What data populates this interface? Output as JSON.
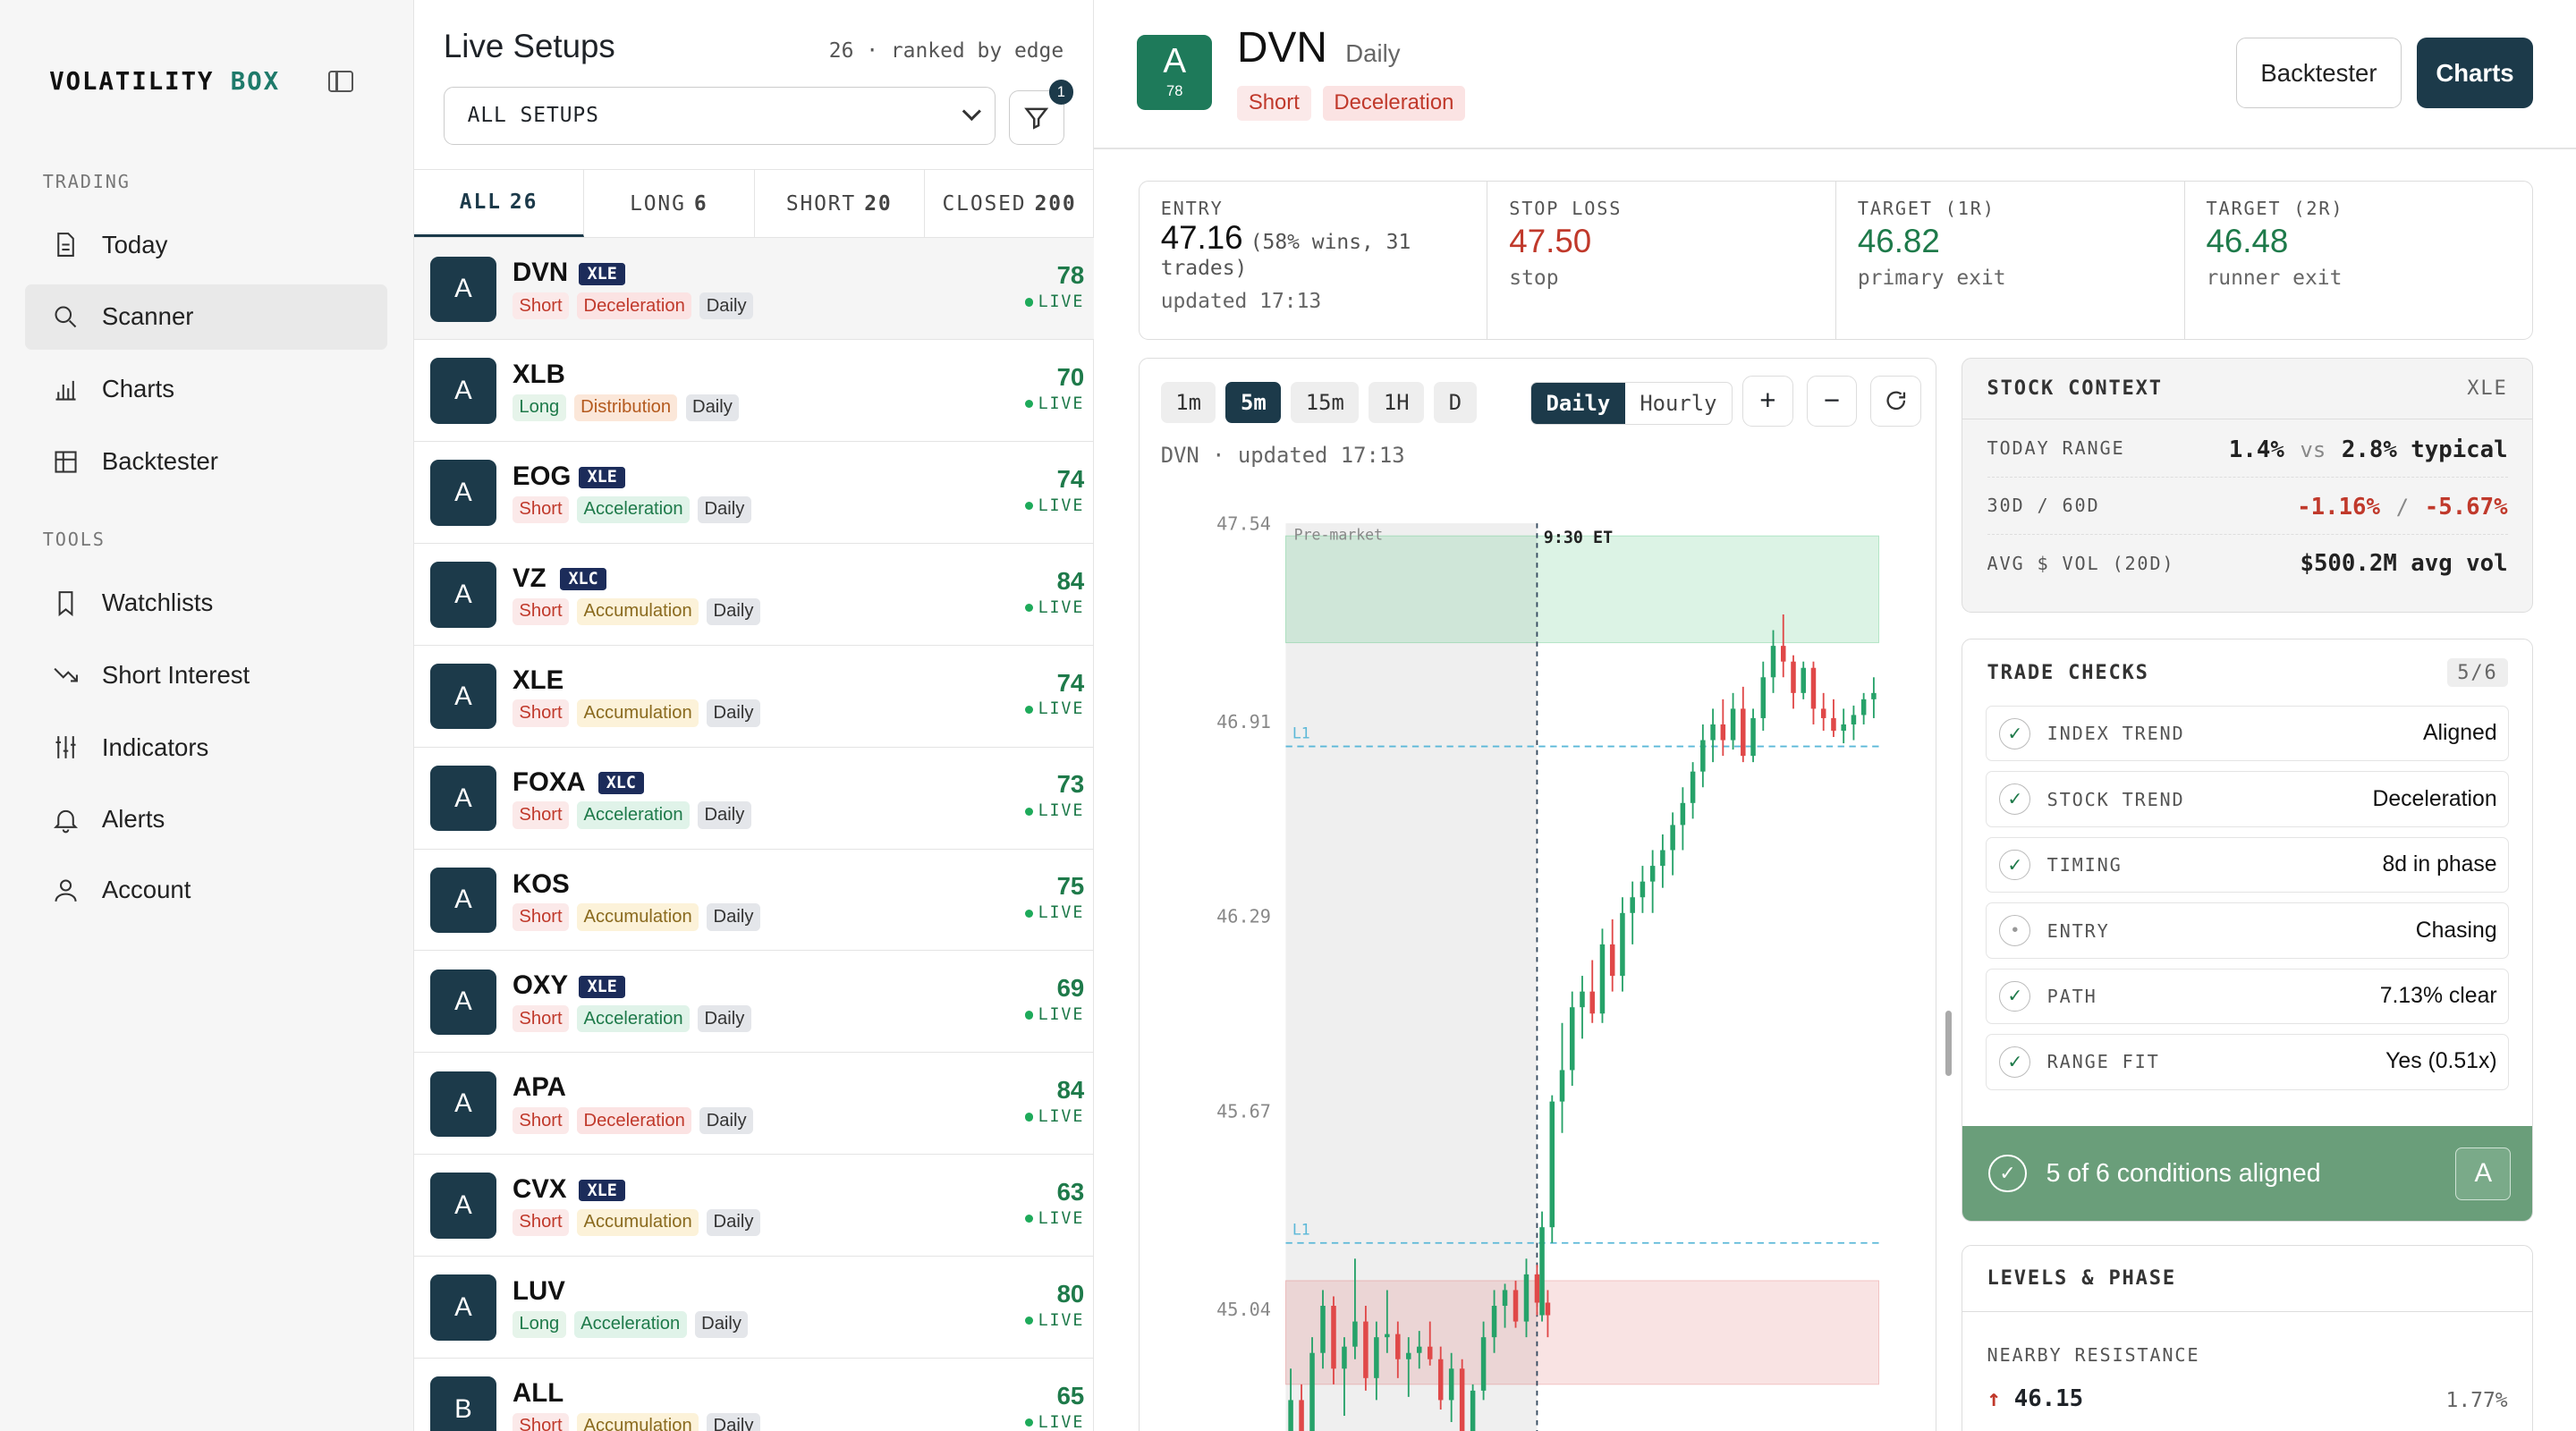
{
  "brand": {
    "part1": "VOLATILITY",
    "part2": "BOX"
  },
  "nav": {
    "section_trading": "TRADING",
    "section_tools": "TOOLS",
    "items": [
      "Today",
      "Scanner",
      "Charts",
      "Backtester",
      "Watchlists",
      "Short Interest",
      "Indicators",
      "Alerts",
      "Account"
    ]
  },
  "list": {
    "title": "Live Setups",
    "rank_text": "26 · ranked by edge",
    "select_value": "ALL SETUPS",
    "filter_badge": "1",
    "tabs": [
      {
        "label": "ALL",
        "count": "26"
      },
      {
        "label": "LONG",
        "count": "6"
      },
      {
        "label": "SHORT",
        "count": "20"
      },
      {
        "label": "CLOSED",
        "count": "200"
      }
    ],
    "live_label": "LIVE",
    "rows": [
      {
        "grade": "A",
        "ticker": "DVN",
        "sector": "XLE",
        "dir": "Short",
        "phase": "Deceleration",
        "tf": "Daily",
        "score": "78"
      },
      {
        "grade": "A",
        "ticker": "XLB",
        "sector": "",
        "dir": "Long",
        "phase": "Distribution",
        "tf": "Daily",
        "score": "70"
      },
      {
        "grade": "A",
        "ticker": "EOG",
        "sector": "XLE",
        "dir": "Short",
        "phase": "Acceleration",
        "tf": "Daily",
        "score": "74"
      },
      {
        "grade": "A",
        "ticker": "VZ",
        "sector": "XLC",
        "dir": "Short",
        "phase": "Accumulation",
        "tf": "Daily",
        "score": "84"
      },
      {
        "grade": "A",
        "ticker": "XLE",
        "sector": "",
        "dir": "Short",
        "phase": "Accumulation",
        "tf": "Daily",
        "score": "74"
      },
      {
        "grade": "A",
        "ticker": "FOXA",
        "sector": "XLC",
        "dir": "Short",
        "phase": "Acceleration",
        "tf": "Daily",
        "score": "73"
      },
      {
        "grade": "A",
        "ticker": "KOS",
        "sector": "",
        "dir": "Short",
        "phase": "Accumulation",
        "tf": "Daily",
        "score": "75"
      },
      {
        "grade": "A",
        "ticker": "OXY",
        "sector": "XLE",
        "dir": "Short",
        "phase": "Acceleration",
        "tf": "Daily",
        "score": "69"
      },
      {
        "grade": "A",
        "ticker": "APA",
        "sector": "",
        "dir": "Short",
        "phase": "Deceleration",
        "tf": "Daily",
        "score": "84"
      },
      {
        "grade": "A",
        "ticker": "CVX",
        "sector": "XLE",
        "dir": "Short",
        "phase": "Accumulation",
        "tf": "Daily",
        "score": "63"
      },
      {
        "grade": "A",
        "ticker": "LUV",
        "sector": "",
        "dir": "Long",
        "phase": "Acceleration",
        "tf": "Daily",
        "score": "80"
      },
      {
        "grade": "B",
        "ticker": "ALL",
        "sector": "",
        "dir": "Short",
        "phase": "Accumulation",
        "tf": "Daily",
        "score": "65"
      }
    ]
  },
  "header": {
    "grade": "A",
    "grade_score": "78",
    "ticker": "DVN",
    "timeframe": "Daily",
    "dir": "Short",
    "phase": "Deceleration",
    "backtester_btn": "Backtester",
    "charts_btn": "Charts"
  },
  "stats": {
    "entry": {
      "label": "ENTRY",
      "value": "47.16",
      "note": "(58% wins, 31",
      "note2": "trades)",
      "sub": "updated 17:13"
    },
    "stop": {
      "label": "STOP LOSS",
      "value": "47.50",
      "sub": "stop"
    },
    "t1": {
      "label": "TARGET (1R)",
      "value": "46.82",
      "sub": "primary exit"
    },
    "t2": {
      "label": "TARGET (2R)",
      "value": "46.48",
      "sub": "runner exit"
    }
  },
  "chart": {
    "tf_buttons": [
      "1m",
      "5m",
      "15m",
      "1H",
      "D"
    ],
    "tf_active": "5m",
    "seg": [
      "Daily",
      "Hourly"
    ],
    "seg_active": "Daily",
    "zoom_in": "+",
    "zoom_out": "−",
    "updated": "DVN · updated 17:13",
    "premarket_label": "Pre-market",
    "open_label": "9:30 ET",
    "l1_label": "L1"
  },
  "chart_data": {
    "type": "candlestick",
    "yticks": [
      47.54,
      46.91,
      46.29,
      45.67,
      45.04
    ],
    "ylim": [
      44.55,
      47.54
    ],
    "levels": [
      46.83,
      45.25
    ],
    "bands": [
      {
        "from": 47.5,
        "to": 47.16,
        "color": "green"
      },
      {
        "from": 45.13,
        "to": 44.8,
        "color": "red"
      }
    ],
    "candles": [
      [
        44.55,
        44.85,
        44.55,
        44.75
      ],
      [
        44.75,
        44.8,
        44.52,
        44.6
      ],
      [
        44.6,
        44.95,
        44.55,
        44.9
      ],
      [
        44.9,
        45.1,
        44.85,
        45.05
      ],
      [
        45.05,
        45.08,
        44.8,
        44.85
      ],
      [
        44.85,
        44.95,
        44.7,
        44.92
      ],
      [
        44.92,
        45.2,
        44.88,
        45.0
      ],
      [
        45.0,
        45.05,
        44.78,
        44.82
      ],
      [
        44.82,
        45.0,
        44.75,
        44.95
      ],
      [
        44.95,
        45.1,
        44.9,
        44.96
      ],
      [
        44.96,
        45.0,
        44.82,
        44.88
      ],
      [
        44.88,
        44.95,
        44.76,
        44.9
      ],
      [
        44.9,
        44.97,
        44.85,
        44.92
      ],
      [
        44.92,
        45.0,
        44.86,
        44.88
      ],
      [
        44.88,
        44.92,
        44.72,
        44.75
      ],
      [
        44.75,
        44.9,
        44.68,
        44.85
      ],
      [
        44.85,
        44.88,
        44.62,
        44.65
      ],
      [
        44.65,
        44.8,
        44.55,
        44.78
      ],
      [
        44.78,
        45.0,
        44.75,
        44.95
      ],
      [
        44.95,
        45.1,
        44.9,
        45.05
      ],
      [
        45.05,
        45.12,
        44.98,
        45.1
      ],
      [
        45.1,
        45.13,
        44.98,
        45.0
      ],
      [
        45.0,
        45.2,
        44.95,
        45.15
      ],
      [
        45.15,
        45.18,
        45.02,
        45.06
      ],
      [
        45.06,
        45.1,
        44.95,
        45.02
      ],
      [
        45.02,
        45.35,
        45.0,
        45.3
      ],
      [
        45.3,
        45.72,
        45.25,
        45.7
      ],
      [
        45.7,
        45.95,
        45.6,
        45.8
      ],
      [
        45.8,
        46.05,
        45.75,
        46.0
      ],
      [
        46.0,
        46.1,
        45.9,
        46.05
      ],
      [
        46.05,
        46.15,
        45.95,
        45.98
      ],
      [
        45.98,
        46.25,
        45.95,
        46.2
      ],
      [
        46.2,
        46.28,
        46.05,
        46.1
      ],
      [
        46.1,
        46.35,
        46.05,
        46.3
      ],
      [
        46.3,
        46.4,
        46.2,
        46.35
      ],
      [
        46.35,
        46.45,
        46.3,
        46.4
      ],
      [
        46.4,
        46.5,
        46.3,
        46.45
      ],
      [
        46.45,
        46.55,
        46.38,
        46.5
      ],
      [
        46.5,
        46.62,
        46.42,
        46.58
      ],
      [
        46.58,
        46.7,
        46.5,
        46.65
      ],
      [
        46.65,
        46.78,
        46.6,
        46.75
      ],
      [
        46.75,
        46.9,
        46.7,
        46.85
      ],
      [
        46.85,
        46.95,
        46.78,
        46.9
      ],
      [
        46.9,
        46.98,
        46.8,
        46.85
      ],
      [
        46.85,
        47.0,
        46.82,
        46.95
      ],
      [
        46.95,
        47.02,
        46.78,
        46.8
      ],
      [
        46.8,
        46.95,
        46.78,
        46.92
      ],
      [
        46.92,
        47.1,
        46.88,
        47.05
      ],
      [
        47.05,
        47.2,
        47.0,
        47.15
      ],
      [
        47.15,
        47.25,
        47.05,
        47.1
      ],
      [
        47.1,
        47.12,
        46.95,
        47.0
      ],
      [
        47.0,
        47.1,
        46.98,
        47.08
      ],
      [
        47.08,
        47.1,
        46.9,
        46.95
      ],
      [
        46.95,
        47.0,
        46.88,
        46.92
      ],
      [
        46.92,
        46.98,
        46.86,
        46.88
      ],
      [
        46.88,
        46.95,
        46.84,
        46.9
      ],
      [
        46.9,
        46.96,
        46.85,
        46.93
      ],
      [
        46.93,
        47.0,
        46.9,
        46.98
      ],
      [
        46.98,
        47.05,
        46.92,
        47.0
      ]
    ]
  },
  "context": {
    "title": "STOCK CONTEXT",
    "tag": "XLE",
    "rows": [
      {
        "k": "TODAY RANGE",
        "v": "1.4%",
        "mid": "vs",
        "v2": "2.8% typical"
      },
      {
        "k": "30D / 60D",
        "v": "-1.16%",
        "mid": "/",
        "v2": "-5.67%"
      },
      {
        "k": "AVG $ VOL (20D)",
        "v": "$500.2M avg vol"
      }
    ]
  },
  "checks": {
    "title": "TRADE CHECKS",
    "count": "5/6",
    "rows": [
      {
        "k": "INDEX TREND",
        "v": "Aligned",
        "ok": true
      },
      {
        "k": "STOCK TREND",
        "v": "Deceleration",
        "ok": true
      },
      {
        "k": "TIMING",
        "v": "8d in phase",
        "ok": true
      },
      {
        "k": "ENTRY",
        "v": "Chasing",
        "ok": false
      },
      {
        "k": "PATH",
        "v": "7.13% clear",
        "ok": true
      },
      {
        "k": "RANGE FIT",
        "v": "Yes (0.51x)",
        "ok": true
      }
    ],
    "summary": "5 of 6 conditions aligned",
    "summary_grade": "A"
  },
  "levels": {
    "title": "LEVELS & PHASE",
    "sub": "NEARBY RESISTANCE",
    "value": "46.15",
    "pct": "1.77%"
  }
}
